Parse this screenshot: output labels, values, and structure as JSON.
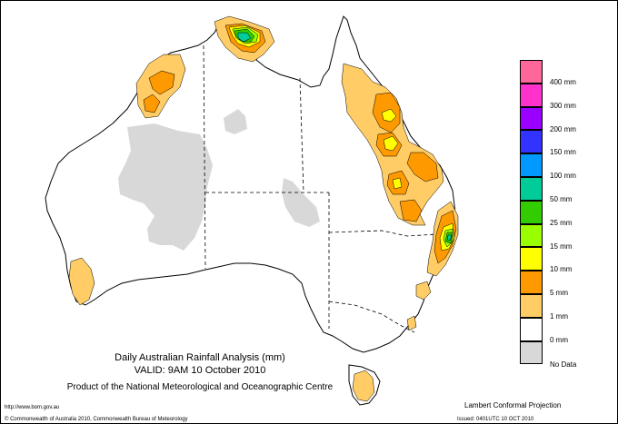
{
  "title": {
    "line1": "Daily Australian Rainfall Analysis (mm)",
    "line2": "VALID: 9AM 10 October 2010",
    "line3": "Product of the National Meteorological and Oceanographic Centre"
  },
  "footer": {
    "url": "http://www.bom.gov.au",
    "copyright": "© Commonwealth of Australia 2010, Commonwealth Bureau of Meteorology",
    "projection": "Lambert Conformal Projection",
    "issued": "Issued: 0401UTC 10 OCT 2010"
  },
  "legend": {
    "items": [
      {
        "label": "400 mm",
        "color": "#ff6699"
      },
      {
        "label": "300 mm",
        "color": "#ff33cc"
      },
      {
        "label": "200 mm",
        "color": "#9900ff"
      },
      {
        "label": "150 mm",
        "color": "#3333ff"
      },
      {
        "label": "100 mm",
        "color": "#0099ff"
      },
      {
        "label": "50 mm",
        "color": "#00cc99"
      },
      {
        "label": "25 mm",
        "color": "#33cc00"
      },
      {
        "label": "15 mm",
        "color": "#99ff00"
      },
      {
        "label": "10 mm",
        "color": "#ffff00"
      },
      {
        "label": "5 mm",
        "color": "#ff9900"
      },
      {
        "label": "1 mm",
        "color": "#ffcc66"
      },
      {
        "label": "0 mm",
        "color": "#ffffff"
      }
    ],
    "nodata": {
      "label": "No Data",
      "color": "#d8d8d8"
    }
  },
  "colors": {
    "coast": "#000000",
    "border": "#000000",
    "nodata": "#d8d8d8"
  }
}
